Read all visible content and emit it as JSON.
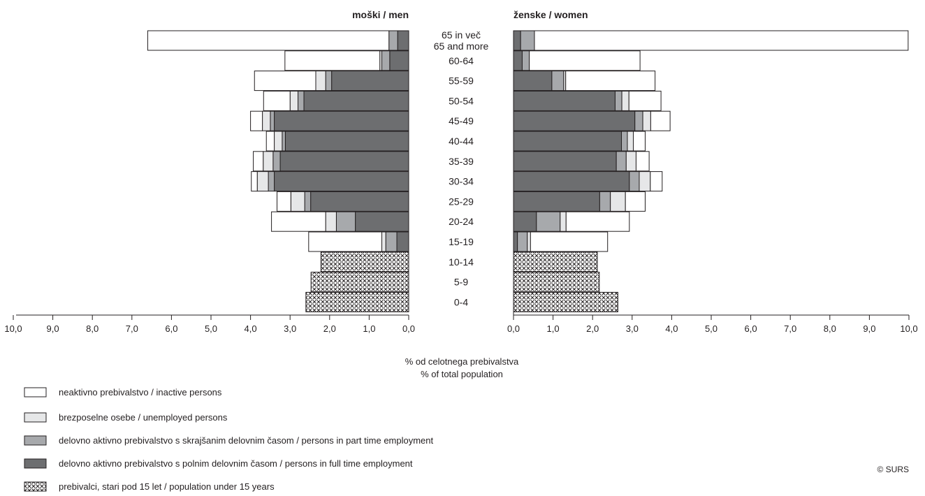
{
  "chart_data": {
    "type": "bar",
    "subtype": "population-pyramid",
    "left_header": "moški / men",
    "right_header": "ženske / women",
    "xlabel_line1": "% od celotnega prebivalstva",
    "xlabel_line2": "% of total population",
    "xlim": [
      0,
      10
    ],
    "x_ticks": [
      "10,0",
      "9,0",
      "8,0",
      "7,0",
      "6,0",
      "5,0",
      "4,0",
      "3,0",
      "2,0",
      "1,0",
      "0,0"
    ],
    "x_ticks_right": [
      "0,0",
      "1,0",
      "2,0",
      "3,0",
      "4,0",
      "5,0",
      "6,0",
      "7,0",
      "8,0",
      "9,0",
      "10,0"
    ],
    "categories": [
      [
        "65 in več",
        "65 and more"
      ],
      [
        "60-64"
      ],
      [
        "55-59"
      ],
      [
        "50-54"
      ],
      [
        "45-49"
      ],
      [
        "40-44"
      ],
      [
        "35-39"
      ],
      [
        "30-34"
      ],
      [
        "25-29"
      ],
      [
        "20-24"
      ],
      [
        "15-19"
      ],
      [
        "10-14"
      ],
      [
        "5-9"
      ],
      [
        "0-4"
      ]
    ],
    "series": [
      {
        "key": "full",
        "name": "delovno aktivno prebivalstvo s polnim delovnim časom / persons in full time employment",
        "color": "#6d6e70"
      },
      {
        "key": "part",
        "name": "delovno aktivno prebivalstvo s skrajšanim delovnim časom /  persons in part time employment",
        "color": "#a7a9ac"
      },
      {
        "key": "unemp",
        "name": "brezposelne osebe / unemployed persons",
        "color": "#e6e7e8"
      },
      {
        "key": "inact",
        "name": "neaktivno prebivalstvo / inactive persons",
        "color": "#ffffff"
      },
      {
        "key": "under15",
        "name": "prebivalci, stari pod 15 let / population under 15 years",
        "color": "pattern"
      }
    ],
    "men": [
      {
        "full": 0.28,
        "part": 0.22,
        "unemp": 0.0,
        "inact": 6.1
      },
      {
        "full": 0.48,
        "part": 0.2,
        "unemp": 0.05,
        "inact": 2.4
      },
      {
        "full": 1.95,
        "part": 0.15,
        "unemp": 0.25,
        "inact": 1.55
      },
      {
        "full": 2.65,
        "part": 0.15,
        "unemp": 0.2,
        "inact": 0.67
      },
      {
        "full": 3.4,
        "part": 0.1,
        "unemp": 0.2,
        "inact": 0.3
      },
      {
        "full": 3.12,
        "part": 0.08,
        "unemp": 0.2,
        "inact": 0.2
      },
      {
        "full": 3.25,
        "part": 0.18,
        "unemp": 0.25,
        "inact": 0.25
      },
      {
        "full": 3.4,
        "part": 0.15,
        "unemp": 0.28,
        "inact": 0.15
      },
      {
        "full": 2.48,
        "part": 0.15,
        "unemp": 0.35,
        "inact": 0.35
      },
      {
        "full": 1.35,
        "part": 0.48,
        "unemp": 0.27,
        "inact": 1.37
      },
      {
        "full": 0.3,
        "part": 0.28,
        "unemp": 0.1,
        "inact": 1.85
      },
      {
        "under15": 2.22
      },
      {
        "under15": 2.47
      },
      {
        "under15": 2.6
      }
    ],
    "women": [
      {
        "full": 0.18,
        "part": 0.35,
        "unemp": 0.0,
        "inact": 9.45
      },
      {
        "full": 0.22,
        "part": 0.18,
        "unemp": 0.0,
        "inact": 2.8
      },
      {
        "full": 0.97,
        "part": 0.3,
        "unemp": 0.05,
        "inact": 2.26
      },
      {
        "full": 2.57,
        "part": 0.17,
        "unemp": 0.18,
        "inact": 0.81
      },
      {
        "full": 3.07,
        "part": 0.2,
        "unemp": 0.2,
        "inact": 0.49
      },
      {
        "full": 2.73,
        "part": 0.15,
        "unemp": 0.15,
        "inact": 0.3
      },
      {
        "full": 2.6,
        "part": 0.25,
        "unemp": 0.25,
        "inact": 0.33
      },
      {
        "full": 2.93,
        "part": 0.25,
        "unemp": 0.28,
        "inact": 0.3
      },
      {
        "full": 2.18,
        "part": 0.27,
        "unemp": 0.38,
        "inact": 0.5
      },
      {
        "full": 0.58,
        "part": 0.6,
        "unemp": 0.15,
        "inact": 1.6
      },
      {
        "full": 0.1,
        "part": 0.25,
        "unemp": 0.08,
        "inact": 1.95
      },
      {
        "under15": 2.12
      },
      {
        "under15": 2.17
      },
      {
        "under15": 2.64
      }
    ]
  },
  "legend": {
    "inactive": "neaktivno prebivalstvo / inactive persons",
    "unemployed": "brezposelne osebe / unemployed persons",
    "part_time": "delovno aktivno prebivalstvo s skrajšanim delovnim časom /  persons in part time employment",
    "full_time": "delovno aktivno prebivalstvo s polnim delovnim časom / persons in full time employment",
    "under15": "prebivalci, stari pod 15 let / population under 15 years"
  },
  "copyright": "© SURS"
}
